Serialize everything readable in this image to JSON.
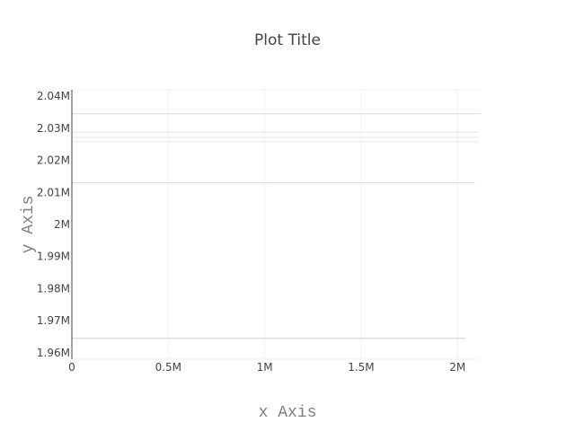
{
  "chart_data": {
    "type": "line",
    "title": "Plot Title",
    "xlabel": "x Axis",
    "ylabel": "y Axis",
    "xlim": [
      0,
      2120000
    ],
    "ylim": [
      1958000,
      2042000
    ],
    "x_ticks": [
      {
        "value": 0,
        "label": "0"
      },
      {
        "value": 500000,
        "label": "0.5M"
      },
      {
        "value": 1000000,
        "label": "1M"
      },
      {
        "value": 1500000,
        "label": "1.5M"
      },
      {
        "value": 2000000,
        "label": "2M"
      }
    ],
    "y_ticks": [
      {
        "value": 1960000,
        "label": "1.96M"
      },
      {
        "value": 1970000,
        "label": "1.97M"
      },
      {
        "value": 1980000,
        "label": "1.98M"
      },
      {
        "value": 1990000,
        "label": "1.99M"
      },
      {
        "value": 2000000,
        "label": "2M"
      },
      {
        "value": 2010000,
        "label": "2.01M"
      },
      {
        "value": 2020000,
        "label": "2.02M"
      },
      {
        "value": 2030000,
        "label": "2.03M"
      },
      {
        "value": 2040000,
        "label": "2.04M"
      }
    ],
    "grid": true,
    "series": [
      {
        "x": [
          0,
          2120000
        ],
        "y": [
          2034500,
          2034500
        ],
        "color": "#cfdde6"
      },
      {
        "x": [
          0,
          2110000
        ],
        "y": [
          2028800,
          2028800
        ],
        "color": "#dde7ee"
      },
      {
        "x": [
          0,
          2110000
        ],
        "y": [
          2027200,
          2027200
        ],
        "color": "#dde7ee"
      },
      {
        "x": [
          0,
          2110000
        ],
        "y": [
          2025800,
          2025800
        ],
        "color": "#e3ebf1"
      },
      {
        "x": [
          0,
          2090000
        ],
        "y": [
          2013000,
          2013000
        ],
        "color": "#cfdde6"
      },
      {
        "x": [
          0,
          2040000
        ],
        "y": [
          1964500,
          1964500
        ],
        "color": "#c2d3dd"
      }
    ]
  }
}
